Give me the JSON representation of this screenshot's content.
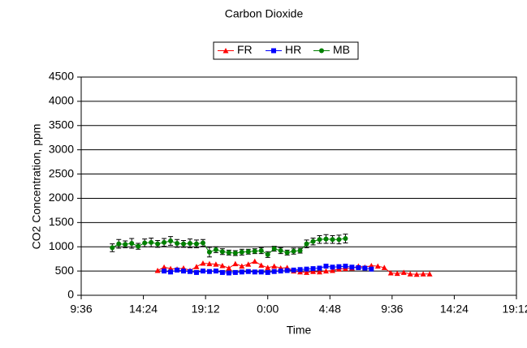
{
  "chart_data": {
    "type": "line",
    "title": "Carbon Dioxide",
    "x_label": "Time",
    "y_label": "CO2 Concentration, ppm",
    "xlim": [
      9.6,
      43.2
    ],
    "xticks": [
      {
        "value": 9.6,
        "label": "9:36"
      },
      {
        "value": 14.4,
        "label": "14:24"
      },
      {
        "value": 19.2,
        "label": "19:12"
      },
      {
        "value": 24,
        "label": "0:00"
      },
      {
        "value": 28.8,
        "label": "4:48"
      },
      {
        "value": 33.6,
        "label": "9:36"
      },
      {
        "value": 38.4,
        "label": "14:24"
      },
      {
        "value": 43.2,
        "label": "19:12"
      }
    ],
    "ylim": [
      0,
      4500
    ],
    "yticks": [
      0,
      500,
      1000,
      1500,
      2000,
      2500,
      3000,
      3500,
      4000,
      4500
    ],
    "grid": true,
    "series": [
      {
        "name": "FR",
        "color": "#ff0000",
        "marker": "triangle",
        "x": [
          15.5,
          16,
          16.5,
          17,
          17.5,
          18,
          18.5,
          19,
          19.5,
          20,
          20.5,
          21,
          21.5,
          22,
          22.5,
          23,
          23.5,
          24,
          24.5,
          25,
          25.5,
          26,
          26.5,
          27,
          27.5,
          28,
          28.5,
          29,
          29.5,
          30,
          30.5,
          31,
          31.5,
          32,
          32.5,
          33,
          33.5,
          34,
          34.5,
          35,
          35.5,
          36,
          36.5
        ],
        "values": [
          510,
          580,
          550,
          540,
          560,
          510,
          590,
          660,
          650,
          640,
          610,
          560,
          650,
          600,
          640,
          700,
          620,
          570,
          600,
          560,
          570,
          500,
          480,
          470,
          490,
          480,
          500,
          510,
          540,
          550,
          560,
          600,
          580,
          610,
          600,
          570,
          460,
          450,
          470,
          440,
          430,
          440,
          440
        ]
      },
      {
        "name": "HR",
        "color": "#0000ff",
        "marker": "square",
        "x": [
          16,
          16.5,
          17,
          17.5,
          18,
          18.5,
          19,
          19.5,
          20,
          20.5,
          21,
          21.5,
          22,
          22.5,
          23,
          23.5,
          24,
          24.5,
          25,
          25.5,
          26,
          26.5,
          27,
          27.5,
          28,
          28.5,
          29,
          29.5,
          30,
          30.5,
          31,
          31.5,
          32
        ],
        "values": [
          500,
          480,
          520,
          500,
          490,
          470,
          500,
          490,
          500,
          470,
          460,
          470,
          480,
          490,
          480,
          480,
          470,
          490,
          500,
          510,
          520,
          530,
          540,
          550,
          560,
          600,
          580,
          590,
          600,
          580,
          570,
          560,
          540
        ]
      },
      {
        "name": "MB",
        "color": "#008000",
        "marker": "circle",
        "x": [
          12,
          12.5,
          13,
          13.5,
          14,
          14.5,
          15,
          15.5,
          16,
          16.5,
          17,
          17.5,
          18,
          18.5,
          19,
          19.5,
          20,
          20.5,
          21,
          21.5,
          22,
          22.5,
          23,
          23.5,
          24,
          24.5,
          25,
          25.5,
          26,
          26.5,
          27,
          27.5,
          28,
          28.5,
          29,
          29.5,
          30
        ],
        "values": [
          980,
          1060,
          1050,
          1070,
          1010,
          1080,
          1090,
          1060,
          1090,
          1120,
          1070,
          1060,
          1070,
          1060,
          1080,
          890,
          940,
          900,
          880,
          870,
          890,
          900,
          910,
          920,
          840,
          960,
          920,
          880,
          910,
          920,
          1060,
          1110,
          1150,
          1160,
          1150,
          1150,
          1170
        ],
        "errors": [
          80,
          90,
          70,
          100,
          60,
          80,
          90,
          70,
          80,
          90,
          80,
          70,
          90,
          80,
          70,
          100,
          60,
          60,
          50,
          50,
          60,
          50,
          50,
          60,
          60,
          50,
          60,
          50,
          60,
          50,
          80,
          70,
          80,
          90,
          80,
          90,
          90
        ]
      }
    ]
  }
}
